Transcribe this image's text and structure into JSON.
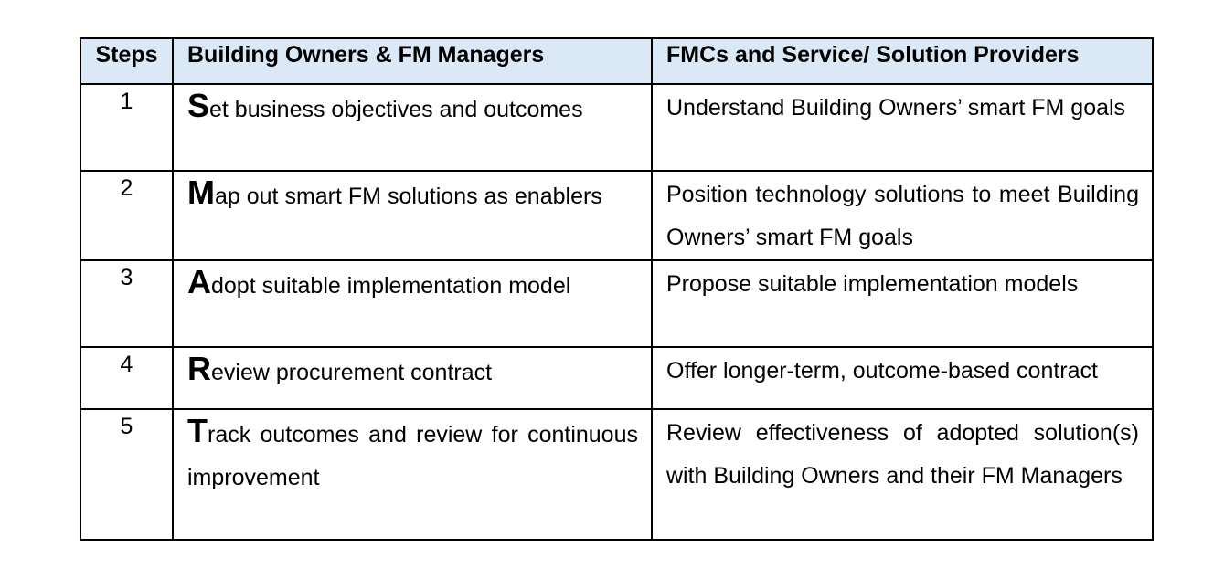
{
  "table": {
    "headers": {
      "steps": "Steps",
      "owners": "Building Owners & FM Managers",
      "fmc": "FMCs and Service/ Solution Providers"
    },
    "rows": [
      {
        "step": "1",
        "owner_initial": "S",
        "owner_rest": "et business objectives and outcomes",
        "fmc": "Understand Building Owners’ smart FM goals"
      },
      {
        "step": "2",
        "owner_initial": "M",
        "owner_rest": "ap out smart FM solutions as enablers",
        "fmc": "Position technology solutions to meet Building Owners’ smart FM goals"
      },
      {
        "step": "3",
        "owner_initial": "A",
        "owner_rest": "dopt suitable implementation model",
        "fmc": "Propose suitable implementation models"
      },
      {
        "step": "4",
        "owner_initial": "R",
        "owner_rest": "eview procurement contract",
        "fmc": "Offer longer-term, outcome-based contract"
      },
      {
        "step": "5",
        "owner_initial": "T",
        "owner_rest": "rack outcomes and review for continuous improvement",
        "fmc": "Review effectiveness of adopted solution(s) with Building Owners and their FM Managers"
      }
    ]
  },
  "colors": {
    "header_background": "#dbe8f6",
    "border": "#000000",
    "text": "#000000"
  }
}
